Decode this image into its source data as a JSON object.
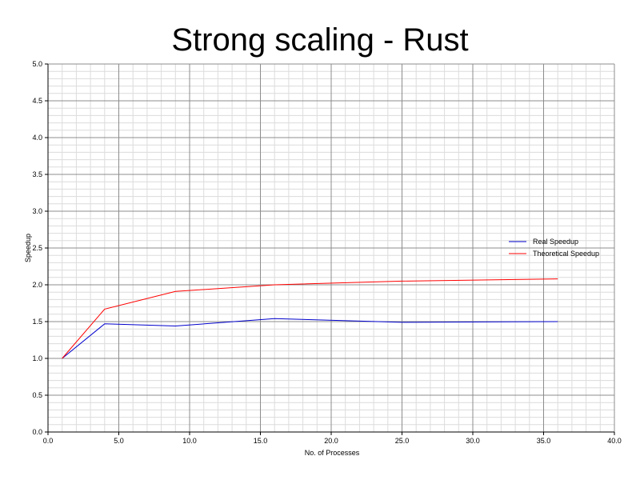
{
  "chart_data": {
    "type": "line",
    "title": "Strong scaling - Rust",
    "xlabel": "No. of Processes",
    "ylabel": "Speedup",
    "xlim": [
      0,
      40
    ],
    "ylim": [
      0,
      5
    ],
    "x_ticks": [
      "0.0",
      "5.0",
      "10.0",
      "15.0",
      "20.0",
      "25.0",
      "30.0",
      "35.0",
      "40.0"
    ],
    "y_ticks": [
      "0.0",
      "0.5",
      "1.0",
      "1.5",
      "2.0",
      "2.5",
      "3.0",
      "3.5",
      "4.0",
      "4.5",
      "5.0"
    ],
    "grid": true,
    "legend_position": "right",
    "series": [
      {
        "name": "Real Speedup",
        "color": "#0000cc",
        "x": [
          1,
          4,
          9,
          16,
          25,
          36
        ],
        "y": [
          1.0,
          1.47,
          1.44,
          1.54,
          1.49,
          1.5
        ]
      },
      {
        "name": "Theoretical Speedup",
        "color": "#ff0000",
        "x": [
          1,
          4,
          9,
          16,
          25,
          36
        ],
        "y": [
          1.0,
          1.67,
          1.91,
          2.0,
          2.05,
          2.08
        ]
      }
    ]
  }
}
